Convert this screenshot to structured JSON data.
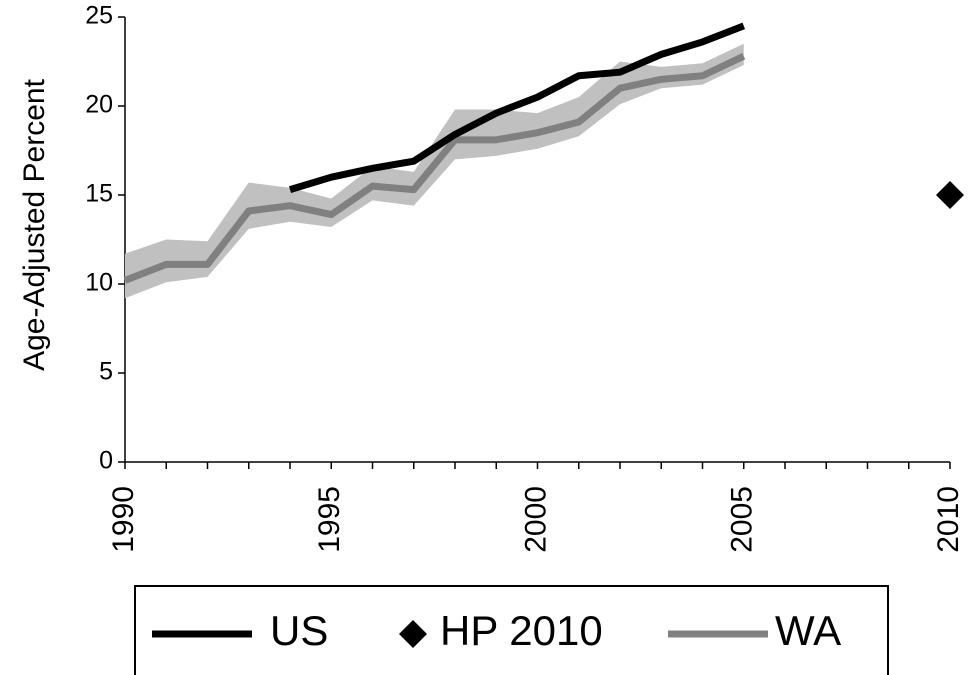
{
  "chart_data": {
    "type": "line",
    "y_label": "Age-Adjusted Percent",
    "xlim": [
      1990,
      2010
    ],
    "xticks": [
      1990,
      1995,
      2000,
      2005,
      2010
    ],
    "x_minor_ticks": [
      1990,
      1991,
      1992,
      1993,
      1994,
      1995,
      1996,
      1997,
      1998,
      1999,
      2000,
      2001,
      2002,
      2003,
      2004,
      2005,
      2006,
      2007,
      2008,
      2009,
      2010
    ],
    "ylim": [
      0,
      25
    ],
    "yticks": [
      0,
      5,
      10,
      15,
      20,
      25
    ],
    "series": [
      {
        "name": "US",
        "color": "#000000",
        "x": [
          1994,
          1995,
          1996,
          1997,
          1998,
          1999,
          2000,
          2001,
          2002,
          2003,
          2004,
          2005
        ],
        "values": [
          15.3,
          16.0,
          16.5,
          16.9,
          18.4,
          19.6,
          20.5,
          21.7,
          21.9,
          22.9,
          23.6,
          24.5
        ]
      },
      {
        "name": "HP 2010",
        "color": "#000000",
        "marker": "diamond",
        "x": [
          2010
        ],
        "values": [
          15
        ]
      },
      {
        "name": "WA",
        "color": "#808080",
        "band_color": "#c0c0c0",
        "x": [
          1990,
          1991,
          1992,
          1993,
          1994,
          1995,
          1996,
          1997,
          1998,
          1999,
          2000,
          2001,
          2002,
          2003,
          2004,
          2005
        ],
        "values": [
          10.2,
          11.1,
          11.1,
          14.1,
          14.4,
          13.9,
          15.5,
          15.3,
          18.1,
          18.1,
          18.5,
          19.1,
          21.0,
          21.5,
          21.7,
          22.8
        ],
        "lower": [
          9.2,
          10.1,
          10.4,
          13.1,
          13.5,
          13.2,
          14.7,
          14.4,
          17.0,
          17.2,
          17.6,
          18.3,
          20.1,
          21.0,
          21.2,
          22.3
        ],
        "upper": [
          11.7,
          12.5,
          12.4,
          15.7,
          15.4,
          14.8,
          16.6,
          16.3,
          19.8,
          19.8,
          19.6,
          20.5,
          22.5,
          22.2,
          22.4,
          23.5
        ]
      }
    ]
  }
}
